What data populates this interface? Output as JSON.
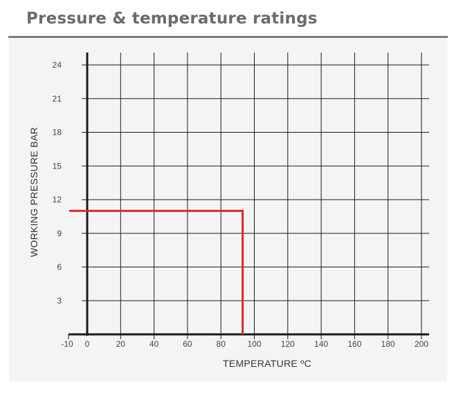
{
  "header": {
    "title": "Pressure & temperature ratings"
  },
  "colors": {
    "title": "#6b6b6b",
    "rule": "#7a7a7a",
    "panel": "#f4f4f4",
    "grid": "#1a1a1a",
    "rating_line": "#d9262b"
  },
  "chart_data": {
    "type": "line",
    "title": "",
    "xlabel": "TEMPERATURE ºC",
    "ylabel": "WORKING PRESSURE BAR",
    "xlim": [
      -10,
      200
    ],
    "ylim": [
      0,
      24
    ],
    "x_ticks": [
      -10,
      0,
      20,
      40,
      60,
      80,
      100,
      120,
      140,
      160,
      180,
      200
    ],
    "y_ticks": [
      3,
      6,
      9,
      12,
      15,
      18,
      21,
      24
    ],
    "grid": true,
    "legend": "none",
    "series": [
      {
        "points": [
          [
            -10,
            11
          ],
          [
            93,
            11
          ],
          [
            93,
            0
          ]
        ]
      }
    ]
  }
}
